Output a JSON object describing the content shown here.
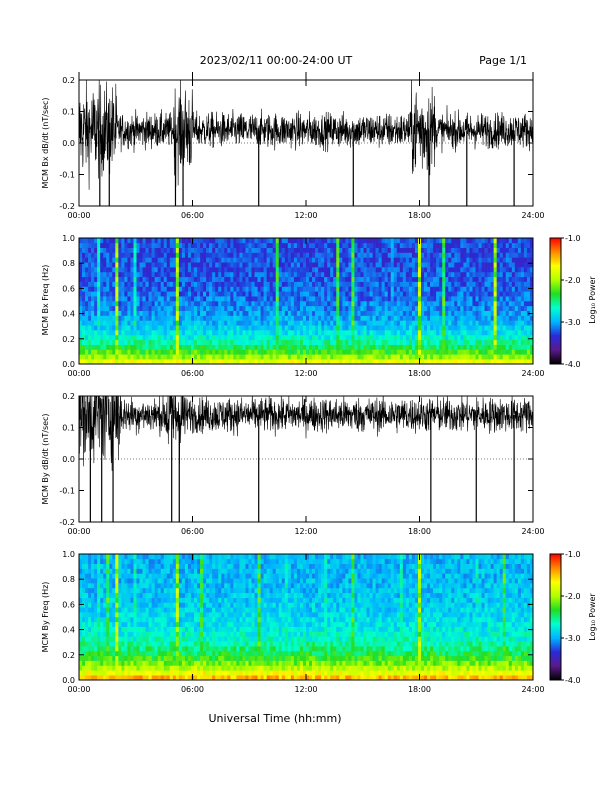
{
  "header": {
    "date_range": "2023/02/11  00:00-24:00 UT",
    "page": "Page 1/1"
  },
  "x_axis": {
    "label": "Universal Time (hh:mm)",
    "ticks": [
      "00:00",
      "06:00",
      "12:00",
      "18:00",
      "24:00"
    ],
    "range_hours": [
      0,
      24
    ]
  },
  "colorbar": {
    "label": "Log₁₀ Power",
    "ticks": [
      "-1.0",
      "-2.0",
      "-3.0",
      "-4.0"
    ],
    "range": [
      -4.0,
      -1.0
    ],
    "colormap": [
      "#000000",
      "#5a1a8a",
      "#2a2ad8",
      "#00b4ff",
      "#00ffd0",
      "#22dd22",
      "#b0ff00",
      "#ffff00",
      "#ff8800",
      "#ff0000"
    ]
  },
  "chart_data": [
    {
      "type": "line",
      "ylabel": "MCM Bx dB/dt (nT/sec)",
      "ylim": [
        -0.2,
        0.2
      ],
      "yticks": [
        "0.2",
        "0.1",
        "0.0",
        "-0.1",
        "-0.2"
      ],
      "baseline": 0.04,
      "spread": 0.05,
      "active_intervals_hours": [
        [
          0.0,
          2.0
        ],
        [
          5.0,
          6.0
        ],
        [
          17.5,
          18.8
        ]
      ],
      "spikes_hours": [
        1.1,
        1.6,
        5.1,
        5.5,
        9.5,
        14.5,
        18.5,
        20.5,
        23.0
      ]
    },
    {
      "type": "heatmap",
      "ylabel": "MCM Bx Freq (Hz)",
      "ylim": [
        0.0,
        1.0
      ],
      "yticks": [
        "1.0",
        "0.8",
        "0.6",
        "0.4",
        "0.2",
        "0.0"
      ],
      "colorbar_range": [
        -4.0,
        -1.0
      ],
      "bright_stripes_hours": [
        1.0,
        1.6,
        2.0,
        3.0,
        5.2,
        10.5,
        12.0,
        13.7,
        14.5,
        16.5,
        18.0,
        19.3,
        22.0
      ]
    },
    {
      "type": "line",
      "ylabel": "MCM By dB/dt (nT/sec)",
      "ylim": [
        -0.2,
        0.2
      ],
      "yticks": [
        "0.2",
        "0.1",
        "0.0",
        "-0.1",
        "-0.2"
      ],
      "baseline": 0.14,
      "spread": 0.05,
      "active_intervals_hours": [
        [
          0.0,
          2.2
        ],
        [
          4.6,
          5.6
        ]
      ],
      "spikes_hours": [
        0.6,
        1.2,
        1.8,
        4.9,
        5.3,
        9.5,
        18.6,
        21.0,
        23.0
      ]
    },
    {
      "type": "heatmap",
      "ylabel": "MCM By Freq (Hz)",
      "ylim": [
        0.0,
        1.0
      ],
      "yticks": [
        "1.0",
        "0.8",
        "0.6",
        "0.4",
        "0.2",
        "0.0"
      ],
      "colorbar_range": [
        -4.0,
        -1.0
      ],
      "bright_stripes_hours": [
        0.3,
        1.0,
        1.5,
        2.0,
        3.0,
        4.0,
        5.2,
        6.5,
        8.0,
        9.5,
        11.0,
        12.0,
        13.0,
        14.5,
        15.5,
        17.0,
        18.0,
        19.5,
        21.0,
        22.5,
        23.5
      ]
    }
  ]
}
